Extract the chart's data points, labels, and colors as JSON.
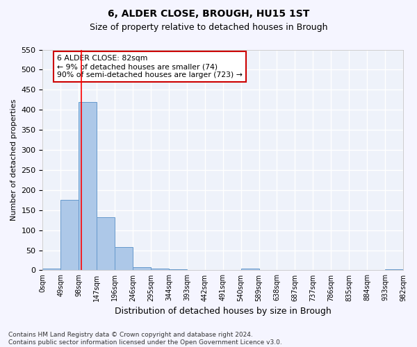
{
  "title1": "6, ALDER CLOSE, BROUGH, HU15 1ST",
  "title2": "Size of property relative to detached houses in Brough",
  "xlabel": "Distribution of detached houses by size in Brough",
  "ylabel": "Number of detached properties",
  "bin_labels": [
    "0sqm",
    "49sqm",
    "98sqm",
    "147sqm",
    "196sqm",
    "246sqm",
    "295sqm",
    "344sqm",
    "393sqm",
    "442sqm",
    "491sqm",
    "540sqm",
    "589sqm",
    "638sqm",
    "687sqm",
    "737sqm",
    "786sqm",
    "835sqm",
    "884sqm",
    "933sqm",
    "982sqm"
  ],
  "bar_values": [
    5,
    175,
    420,
    133,
    58,
    8,
    5,
    3,
    0,
    0,
    0,
    5,
    0,
    0,
    0,
    0,
    0,
    0,
    0,
    3
  ],
  "bar_color": "#adc8e8",
  "bar_edge_color": "#6699cc",
  "red_line_x": 1.66,
  "annotation_text": "6 ALDER CLOSE: 82sqm\n← 9% of detached houses are smaller (74)\n90% of semi-detached houses are larger (723) →",
  "annotation_box_color": "#ffffff",
  "annotation_box_edge": "#cc0000",
  "ylim": [
    0,
    550
  ],
  "yticks": [
    0,
    50,
    100,
    150,
    200,
    250,
    300,
    350,
    400,
    450,
    500,
    550
  ],
  "axes_bg_color": "#eef2fa",
  "grid_color": "#ffffff",
  "footnote": "Contains HM Land Registry data © Crown copyright and database right 2024.\nContains public sector information licensed under the Open Government Licence v3.0."
}
